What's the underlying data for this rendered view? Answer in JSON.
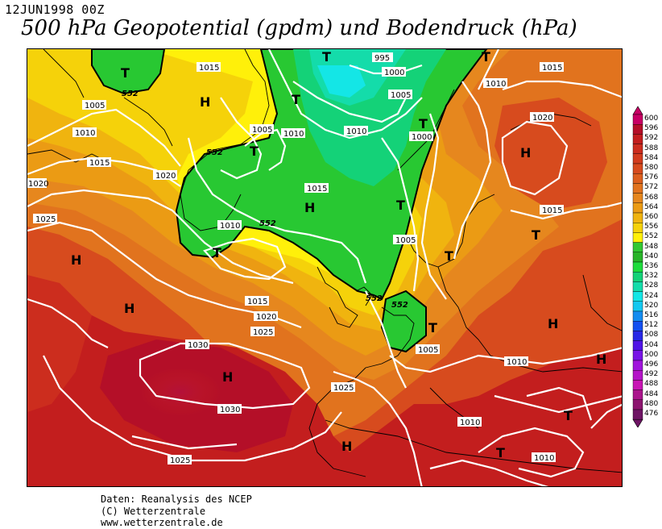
{
  "header": {
    "date": "12JUN1998 00Z",
    "title": "500 hPa Geopotential (gpdm) und Bodendruck (hPa)"
  },
  "map": {
    "isobar_labels": [
      "995",
      "1000",
      "1005",
      "1010",
      "1015",
      "1020",
      "1025",
      "1030"
    ],
    "geopotential_label": "552",
    "high_marker": "H",
    "low_marker": "T"
  },
  "legend": {
    "levels": [
      "600",
      "596",
      "592",
      "588",
      "584",
      "580",
      "576",
      "572",
      "568",
      "564",
      "560",
      "556",
      "552",
      "548",
      "540",
      "536",
      "532",
      "528",
      "524",
      "520",
      "516",
      "512",
      "508",
      "504",
      "500",
      "496",
      "492",
      "488",
      "484",
      "480",
      "476"
    ],
    "colors": [
      "#c80064",
      "#b40f28",
      "#c31e1e",
      "#cc2d1e",
      "#d23c1e",
      "#d74b1e",
      "#dc5f1e",
      "#e1731e",
      "#e6871e",
      "#eb9b14",
      "#f0b40f",
      "#f5d20a",
      "#fff00a",
      "#32c832",
      "#28b428",
      "#1edc3c",
      "#14d278",
      "#14dcaa",
      "#14e6e6",
      "#14c8f0",
      "#148cf0",
      "#1450f0",
      "#2828e6",
      "#5014e6",
      "#7814e6",
      "#a014dc",
      "#b414c8",
      "#c814b4",
      "#aa148c",
      "#8c146e",
      "#6e1464"
    ]
  },
  "credits": {
    "line1": "Daten: Reanalysis des NCEP",
    "line2": "(C) Wetterzentrale",
    "line3": "www.wetterzentrale.de"
  }
}
